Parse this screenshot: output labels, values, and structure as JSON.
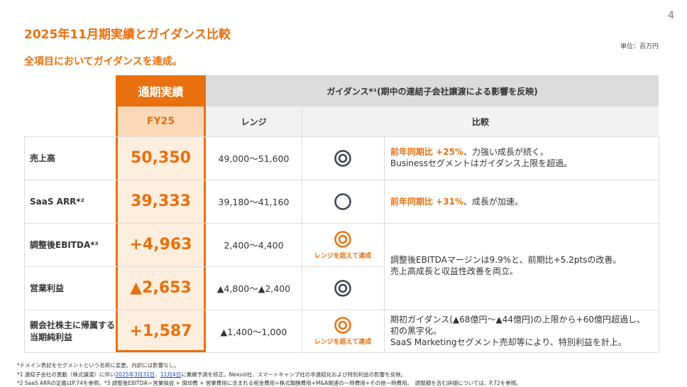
{
  "page_number": "4",
  "title": "2025年11月期実績とガイダンス比較",
  "subtitle": "全項目においてガイダンスを達成。",
  "unit": "単位：百万円",
  "header": {
    "actual": "通期実績",
    "guidance": "ガイダンス*¹(期中の連結子会社譲渡による影響を反映)",
    "fy": "FY25",
    "range": "レンジ",
    "comparison": "比較"
  },
  "rows": [
    {
      "label": "売上高",
      "value": "50,350",
      "range": "49,000〜51,600",
      "symbol": "double-circle",
      "note": "",
      "c1": "前年同期比 +25%",
      "c2": "、力強い成長が続く。",
      "c3": "Businessセグメントはガイダンス上限を超過。"
    },
    {
      "label": "SaaS ARR*²",
      "value": "39,333",
      "range": "39,180〜41,160",
      "symbol": "circle",
      "note": "",
      "c1": "前年同期比 +31%",
      "c2": "、成長が加速。",
      "c3": ""
    },
    {
      "label": "調整後EBITDA*³",
      "value": "+4,963",
      "range": "2,400〜4,400",
      "symbol": "double-circle-orange",
      "note": "レンジを超えて達成"
    },
    {
      "label": "営業利益",
      "value": "▲2,653",
      "range": "▲4,800〜▲2,400",
      "symbol": "double-circle",
      "note": ""
    },
    {
      "label": "親会社株主に帰属する当期純利益",
      "value": "+1,587",
      "range": "▲1,400〜1,000",
      "symbol": "double-circle-orange",
      "note": "レンジを超えて達成"
    }
  ],
  "comment_ebitda": [
    "調整後EBITDAマージンは9.9%と、前期比+5.2ptsの改善。",
    "売上高成長と収益性改善を両立。"
  ],
  "comment_net": [
    "期初ガイダンス(▲68億円〜▲44億円)の上限から+60億円超過し、",
    "初の黒字化。",
    "SaaS Marketingセグメント売却等により、特別利益を計上。"
  ],
  "footnotes": {
    "f0": "*ドメイン表記をセグメントという名称に変更。内訳には影響なし。",
    "f1a": "*1 連結子会社の異動（株式譲渡）に伴い",
    "f1b": "2025年3月31日",
    "f1c": "、",
    "f1d": "11月4日",
    "f1e": "に業績予測を修正。Nexsol社、スマートキャンプ社の非連結化および特別利益の影響を反映。",
    "f2": "*2 SaaS ARRの定義はP.74を参照。*3 調整後EBITDA＝営業損益 + 償却費 + 営業費用に含まれる税金費用+株式報酬費用+M&A関連の一時費用+その他一時費用。　調整額を含む詳細については、P.72を参照。"
  },
  "colors": {
    "accent": "#e8700f",
    "fy_bg": "#fde9d6",
    "header_bg": "#dcdcdc"
  }
}
